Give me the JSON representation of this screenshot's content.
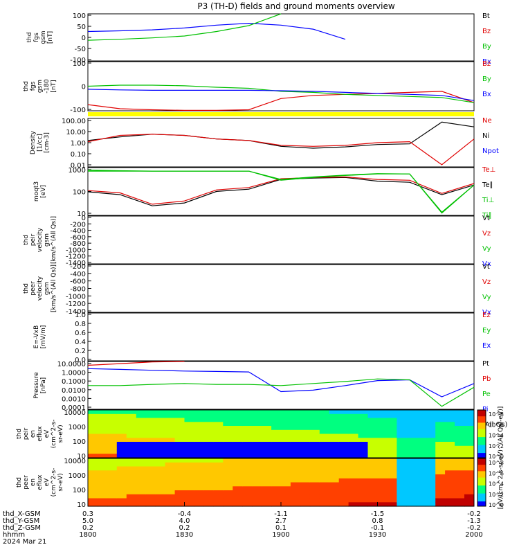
{
  "title": "P3 (TH-D) fields and ground moments overview",
  "colors": {
    "black": "#000000",
    "red": "#e00000",
    "green": "#00c000",
    "blue": "#0000ff",
    "yellow": "#ffff00"
  },
  "time_axis": {
    "hhmm_ticks": [
      "1800",
      "1830",
      "1900",
      "1930",
      "2000"
    ],
    "date": "2024 Mar 21",
    "rows": [
      {
        "label": "thd_X-GSM",
        "values": [
          "0.3",
          "-0.4",
          "-1.1",
          "-1.5",
          "-0.2"
        ]
      },
      {
        "label": "thd_Y-GSM",
        "values": [
          "5.0",
          "4.0",
          "2.7",
          "0.8",
          "-1.3"
        ]
      },
      {
        "label": "thd_Z-GSM",
        "values": [
          "0.2",
          "0.2",
          "0.1",
          "-0.1",
          "-0.2"
        ]
      },
      {
        "label": "hhmm",
        "values": []
      }
    ]
  },
  "panels": [
    {
      "ylabel": [
        "thd",
        "fgs",
        "gsm",
        "[nT]"
      ],
      "ticks": [
        "100",
        "50",
        "0",
        "-50",
        "-100"
      ],
      "legend": [
        {
          "text": "Bt",
          "color": "black"
        },
        {
          "text": "Bz",
          "color": "red"
        },
        {
          "text": "By",
          "color": "green"
        },
        {
          "text": "Bx",
          "color": "blue"
        }
      ]
    },
    {
      "ylabel": [
        "thd",
        "fgs",
        "gsm",
        "-180",
        "[nT]"
      ],
      "ticks": [
        "100",
        "0",
        "-100"
      ],
      "legend": [
        {
          "text": "Bz",
          "color": "red"
        },
        {
          "text": "By",
          "color": "green"
        },
        {
          "text": "Bx",
          "color": "blue"
        }
      ]
    },
    {
      "ylabel": [
        "Density",
        "[1/cc]",
        "[cm-3]"
      ],
      "ticks": [
        "100.00",
        "10.00",
        "1.00",
        "0.10",
        "0.01"
      ],
      "legend": [
        {
          "text": "Ne",
          "color": "red"
        },
        {
          "text": "Ni",
          "color": "black"
        },
        {
          "text": "Npot",
          "color": "blue"
        }
      ]
    },
    {
      "ylabel": [
        "moqt3",
        "[eV]"
      ],
      "ticks": [
        "1000",
        "100",
        "10"
      ],
      "legend": [
        {
          "text": "Te⊥",
          "color": "red"
        },
        {
          "text": "Te∥",
          "color": "black"
        },
        {
          "text": "Ti⊥",
          "color": "green"
        },
        {
          "text": "Ti∥",
          "color": "green"
        }
      ]
    },
    {
      "ylabel": [
        "thd",
        "peir",
        "velocity",
        "gsm",
        "[km/s^(All Qs)]"
      ],
      "ticks": [
        "0",
        "-200",
        "-400",
        "-600",
        "-800",
        "-1000",
        "-1200",
        "-1400"
      ],
      "legend": [
        {
          "text": "Vt",
          "color": "black"
        },
        {
          "text": "Vz",
          "color": "red"
        },
        {
          "text": "Vy",
          "color": "green"
        },
        {
          "text": "Vx",
          "color": "blue"
        }
      ]
    },
    {
      "ylabel": [
        "thd",
        "peer",
        "velocity",
        "gsm",
        "[km/s^(All Qs)]"
      ],
      "ticks": [
        "-200",
        "-400",
        "-600",
        "-800",
        "-1000",
        "-1200",
        "-1400"
      ],
      "legend": [
        {
          "text": "Vt",
          "color": "black"
        },
        {
          "text": "Vz",
          "color": "red"
        },
        {
          "text": "Vy",
          "color": "green"
        },
        {
          "text": "Vx",
          "color": "blue"
        }
      ]
    },
    {
      "ylabel": [
        "E=-VxB",
        "[mV/m]"
      ],
      "ticks": [
        "1.0",
        "0.8",
        "0.6",
        "0.4",
        "0.2",
        "0.0"
      ],
      "legend": [
        {
          "text": "Ez",
          "color": "red"
        },
        {
          "text": "Ey",
          "color": "green"
        },
        {
          "text": "Ex",
          "color": "blue"
        }
      ]
    },
    {
      "ylabel": [
        "Pressure",
        "[nPa]"
      ],
      "ticks": [
        "10.0000",
        "1.0000",
        "0.1000",
        "0.0100",
        "0.0010",
        "0.0001"
      ],
      "legend": [
        {
          "text": "Pt",
          "color": "black"
        },
        {
          "text": "Pb",
          "color": "red"
        },
        {
          "text": "Pe",
          "color": "green"
        },
        {
          "text": "Pi",
          "color": "blue"
        },
        {
          "text": "(All Qs)",
          "color": "black"
        }
      ]
    },
    {
      "ylabel": [
        "thd",
        "peir",
        "en",
        "eflux",
        "eV",
        "(cm^2-s-",
        "sr-eV)"
      ],
      "ticks": [
        "10000",
        "1000",
        "100",
        "10"
      ],
      "legend": []
    },
    {
      "ylabel": [
        "thd",
        "peer",
        "en",
        "eflux",
        "eV",
        "(cm^2-s-",
        "sr-eV)"
      ],
      "ticks": [
        "10000",
        "1000",
        "100",
        "10"
      ],
      "legend": []
    }
  ],
  "colorbar": {
    "label": "[eV/(cm^2-s-sr-eV)^(All Qs)-eV)]",
    "ticks_top": [
      "10^8",
      "10^6",
      "10^4",
      "10^2",
      "10^0"
    ],
    "ticks_bottom": [
      "10^8",
      "10^6",
      "10^4",
      "10^2",
      "10^0"
    ]
  },
  "chart_data": {
    "type": "line",
    "title": "P3 (TH-D) fields and ground moments overview",
    "x": [
      "1800",
      "1810",
      "1820",
      "1830",
      "1840",
      "1850",
      "1900",
      "1910",
      "1920",
      "1930",
      "1940",
      "1950",
      "2000"
    ],
    "panels": [
      {
        "name": "thd fgs gsm [nT]",
        "ylim": [
          -100,
          100
        ],
        "series": [
          {
            "name": "Bx",
            "values": [
              25,
              28,
              32,
              40,
              52,
              60,
              52,
              35,
              -8,
              null,
              null,
              null,
              null
            ]
          },
          {
            "name": "By",
            "values": [
              -12,
              -8,
              -2,
              6,
              25,
              50,
              100,
              null,
              null,
              null,
              null,
              null,
              null
            ]
          },
          {
            "name": "Bt",
            "values": [
              null,
              null,
              null,
              null,
              null,
              null,
              null,
              null,
              null,
              null,
              null,
              null,
              null
            ]
          },
          {
            "name": "Bz",
            "values": [
              null,
              null,
              null,
              null,
              null,
              null,
              null,
              null,
              null,
              null,
              null,
              null,
              null
            ]
          }
        ]
      },
      {
        "name": "thd fgs gsm -180 [nT]",
        "ylim": [
          -120,
          120
        ],
        "series": [
          {
            "name": "Bz",
            "values": [
              -90,
              -110,
              -115,
              -118,
              -118,
              -115,
              -60,
              -45,
              -40,
              -35,
              -30,
              -25,
              -80
            ]
          },
          {
            "name": "By",
            "values": [
              0,
              5,
              5,
              2,
              -5,
              -10,
              -25,
              -30,
              -40,
              -45,
              -50,
              -55,
              -80
            ]
          },
          {
            "name": "Bx",
            "values": [
              -15,
              -18,
              -20,
              -20,
              -20,
              -20,
              -22,
              -25,
              -30,
              -35,
              -40,
              -45,
              -70
            ]
          }
        ]
      },
      {
        "name": "Density [cm-3]",
        "ylim": [
          0.01,
          100
        ],
        "yscale": "log",
        "series": [
          {
            "name": "Ni",
            "values": [
              1.5,
              3,
              5,
              4,
              2,
              1.5,
              0.5,
              0.35,
              0.45,
              0.7,
              0.8,
              50,
              20
            ]
          },
          {
            "name": "Ne",
            "values": [
              1.2,
              4,
              5,
              4,
              2,
              1.5,
              0.6,
              0.5,
              0.6,
              1.0,
              1.2,
              0.015,
              2
            ]
          }
        ]
      },
      {
        "name": "moqt3 [eV]",
        "ylim": [
          5,
          5000
        ],
        "yscale": "log",
        "series": [
          {
            "name": "Te∥",
            "values": [
              150,
              100,
              20,
              30,
              160,
              220,
              900,
              1100,
              1200,
              700,
              600,
              100,
              400
            ]
          },
          {
            "name": "Te⊥",
            "values": [
              180,
              130,
              25,
              40,
              200,
              280,
              1000,
              1200,
              1300,
              900,
              800,
              120,
              500
            ]
          },
          {
            "name": "Ti⊥",
            "values": [
              3000,
              3000,
              3000,
              3000,
              3000,
              3000,
              800,
              1200,
              1600,
              2000,
              2000,
              8,
              400
            ]
          },
          {
            "name": "Ti∥",
            "values": [
              3500,
              3200,
              3000,
              3000,
              3000,
              3000,
              900,
              1300,
              1700,
              2100,
              2000,
              7,
              400
            ]
          }
        ]
      },
      {
        "name": "Pressure [nPa]",
        "ylim": [
          0.0001,
          10
        ],
        "yscale": "log",
        "series": [
          {
            "name": "Pb",
            "values": [
              4,
              6,
              9,
              13,
              null,
              null,
              null,
              null,
              null,
              null,
              null,
              null,
              null
            ]
          },
          {
            "name": "Pi",
            "values": [
              1.8,
              1.5,
              1.2,
              1.0,
              0.9,
              0.8,
              0.007,
              0.01,
              0.03,
              0.1,
              0.12,
              0.002,
              0.05
            ]
          },
          {
            "name": "Pe",
            "values": [
              0.03,
              0.03,
              0.04,
              0.05,
              0.04,
              0.04,
              0.03,
              0.05,
              0.08,
              0.15,
              0.12,
              0.0002,
              0.02
            ]
          }
        ]
      }
    ]
  }
}
